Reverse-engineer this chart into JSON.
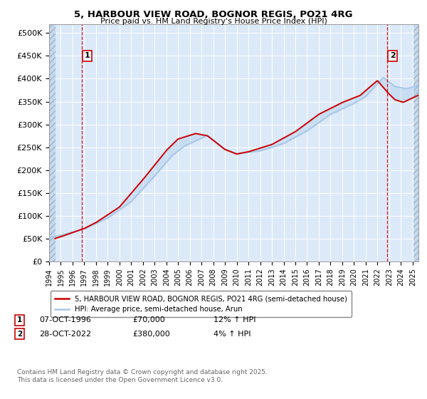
{
  "title_line1": "5, HARBOUR VIEW ROAD, BOGNOR REGIS, PO21 4RG",
  "title_line2": "Price paid vs. HM Land Registry's House Price Index (HPI)",
  "ylim": [
    0,
    520000
  ],
  "ytick_vals": [
    0,
    50000,
    100000,
    150000,
    200000,
    250000,
    300000,
    350000,
    400000,
    450000,
    500000
  ],
  "ytick_labels": [
    "£0",
    "£50K",
    "£100K",
    "£150K",
    "£200K",
    "£250K",
    "£300K",
    "£350K",
    "£400K",
    "£450K",
    "£500K"
  ],
  "hpi_color": "#a8c8e8",
  "price_color": "#cc0000",
  "dashed_color": "#cc0000",
  "background_color": "#dce9f8",
  "grid_color": "#ffffff",
  "legend_label_price": "5, HARBOUR VIEW ROAD, BOGNOR REGIS, PO21 4RG (semi-detached house)",
  "legend_label_hpi": "HPI: Average price, semi-detached house, Arun",
  "sale1_label": "1",
  "sale1_date": "07-OCT-1996",
  "sale1_price": "£70,000",
  "sale1_hpi": "12% ↑ HPI",
  "sale1_year": 1996.78,
  "sale1_value": 70000,
  "sale2_label": "2",
  "sale2_date": "28-OCT-2022",
  "sale2_price": "£380,000",
  "sale2_hpi": "4% ↑ HPI",
  "sale2_year": 2022.82,
  "sale2_value": 380000,
  "footer": "Contains HM Land Registry data © Crown copyright and database right 2025.\nThis data is licensed under the Open Government Licence v3.0.",
  "xmin": 1994.0,
  "xmax": 2025.5
}
